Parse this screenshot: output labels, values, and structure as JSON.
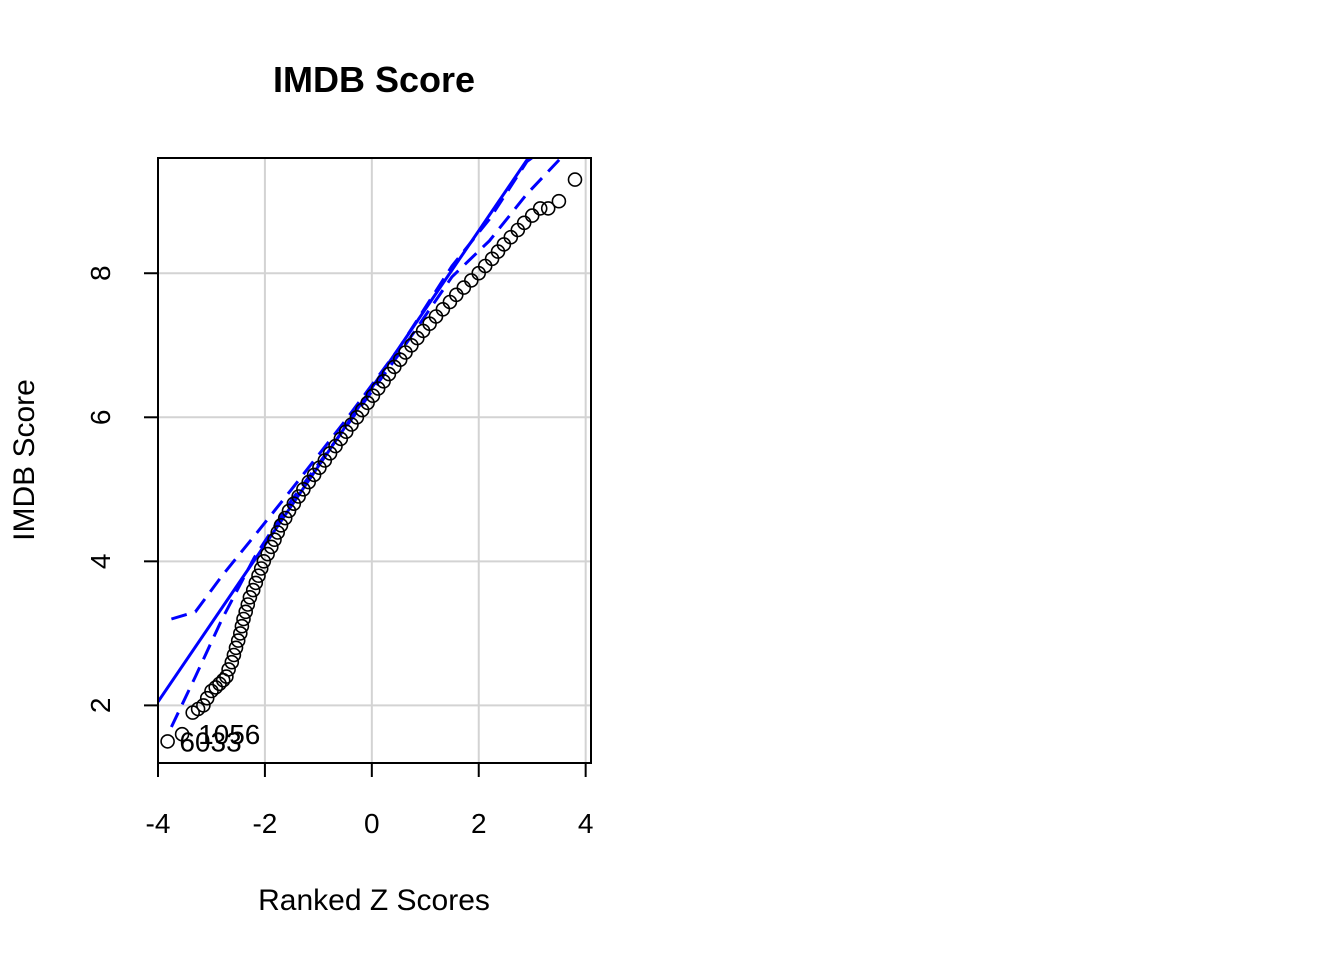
{
  "chart_data": {
    "type": "scatter",
    "title": "IMDB Score",
    "xlabel": "Ranked Z Scores",
    "ylabel": "IMDB Score",
    "xlim": [
      -4.0,
      4.1
    ],
    "ylim": [
      1.2,
      9.6
    ],
    "xticks": [
      -4,
      -2,
      0,
      2,
      4
    ],
    "xtick_labels": [
      "-4",
      "-2",
      "0",
      "2",
      "4"
    ],
    "yticks": [
      2,
      4,
      6,
      8
    ],
    "ytick_labels": [
      "2",
      "4",
      "6",
      "8"
    ],
    "grid": true,
    "colors": {
      "points": "#000000",
      "reference": "#0000ff",
      "grid": "#d3d3d3"
    },
    "reference_line": {
      "slope": 1.09,
      "intercept": 6.41
    },
    "envelope_upper": [
      [
        -3.75,
        3.2
      ],
      [
        -3.3,
        3.3
      ],
      [
        -2.8,
        3.8
      ],
      [
        -2.2,
        4.35
      ],
      [
        -1.5,
        5.0
      ],
      [
        -0.5,
        5.95
      ],
      [
        0.5,
        6.95
      ],
      [
        1.5,
        8.1
      ],
      [
        2.2,
        8.75
      ],
      [
        2.9,
        9.55
      ],
      [
        3.35,
        9.8
      ]
    ],
    "envelope_lower": [
      [
        -3.75,
        1.7
      ],
      [
        -3.3,
        2.4
      ],
      [
        -2.8,
        3.2
      ],
      [
        -2.2,
        4.05
      ],
      [
        -1.5,
        4.85
      ],
      [
        -0.5,
        5.85
      ],
      [
        0.5,
        6.87
      ],
      [
        1.5,
        7.95
      ],
      [
        2.2,
        8.45
      ],
      [
        2.9,
        9.1
      ],
      [
        3.6,
        9.65
      ]
    ],
    "points": [
      [
        -3.82,
        1.5
      ],
      [
        -3.55,
        1.6
      ],
      [
        -3.35,
        1.9
      ],
      [
        -3.25,
        1.95
      ],
      [
        -3.15,
        2.0
      ],
      [
        -3.08,
        2.1
      ],
      [
        -3.0,
        2.2
      ],
      [
        -2.92,
        2.25
      ],
      [
        -2.85,
        2.3
      ],
      [
        -2.78,
        2.35
      ],
      [
        -2.72,
        2.4
      ],
      [
        -2.68,
        2.5
      ],
      [
        -2.62,
        2.6
      ],
      [
        -2.58,
        2.7
      ],
      [
        -2.54,
        2.8
      ],
      [
        -2.5,
        2.9
      ],
      [
        -2.46,
        3.0
      ],
      [
        -2.43,
        3.1
      ],
      [
        -2.4,
        3.2
      ],
      [
        -2.36,
        3.3
      ],
      [
        -2.32,
        3.4
      ],
      [
        -2.28,
        3.5
      ],
      [
        -2.22,
        3.6
      ],
      [
        -2.17,
        3.7
      ],
      [
        -2.12,
        3.8
      ],
      [
        -2.07,
        3.9
      ],
      [
        -2.02,
        4.0
      ],
      [
        -1.95,
        4.1
      ],
      [
        -1.88,
        4.2
      ],
      [
        -1.82,
        4.3
      ],
      [
        -1.76,
        4.4
      ],
      [
        -1.7,
        4.5
      ],
      [
        -1.62,
        4.6
      ],
      [
        -1.55,
        4.7
      ],
      [
        -1.46,
        4.8
      ],
      [
        -1.37,
        4.9
      ],
      [
        -1.28,
        5.0
      ],
      [
        -1.18,
        5.1
      ],
      [
        -1.08,
        5.2
      ],
      [
        -0.98,
        5.3
      ],
      [
        -0.88,
        5.4
      ],
      [
        -0.78,
        5.5
      ],
      [
        -0.68,
        5.6
      ],
      [
        -0.58,
        5.7
      ],
      [
        -0.48,
        5.8
      ],
      [
        -0.38,
        5.9
      ],
      [
        -0.28,
        6.0
      ],
      [
        -0.18,
        6.1
      ],
      [
        -0.08,
        6.2
      ],
      [
        0.02,
        6.3
      ],
      [
        0.12,
        6.4
      ],
      [
        0.22,
        6.5
      ],
      [
        0.32,
        6.6
      ],
      [
        0.42,
        6.7
      ],
      [
        0.53,
        6.8
      ],
      [
        0.63,
        6.9
      ],
      [
        0.74,
        7.0
      ],
      [
        0.85,
        7.1
      ],
      [
        0.96,
        7.2
      ],
      [
        1.08,
        7.3
      ],
      [
        1.2,
        7.4
      ],
      [
        1.33,
        7.5
      ],
      [
        1.46,
        7.6
      ],
      [
        1.58,
        7.7
      ],
      [
        1.72,
        7.8
      ],
      [
        1.86,
        7.9
      ],
      [
        2.0,
        8.0
      ],
      [
        2.12,
        8.1
      ],
      [
        2.25,
        8.2
      ],
      [
        2.36,
        8.3
      ],
      [
        2.47,
        8.4
      ],
      [
        2.6,
        8.5
      ],
      [
        2.73,
        8.6
      ],
      [
        2.85,
        8.7
      ],
      [
        3.0,
        8.8
      ],
      [
        3.15,
        8.9
      ],
      [
        3.3,
        8.9
      ],
      [
        3.5,
        9.0
      ],
      [
        3.8,
        9.3
      ]
    ],
    "annotations": [
      {
        "text": "1056",
        "x": -3.25,
        "y": 1.6
      },
      {
        "text": "6033",
        "x": -3.6,
        "y": 1.5
      }
    ]
  }
}
